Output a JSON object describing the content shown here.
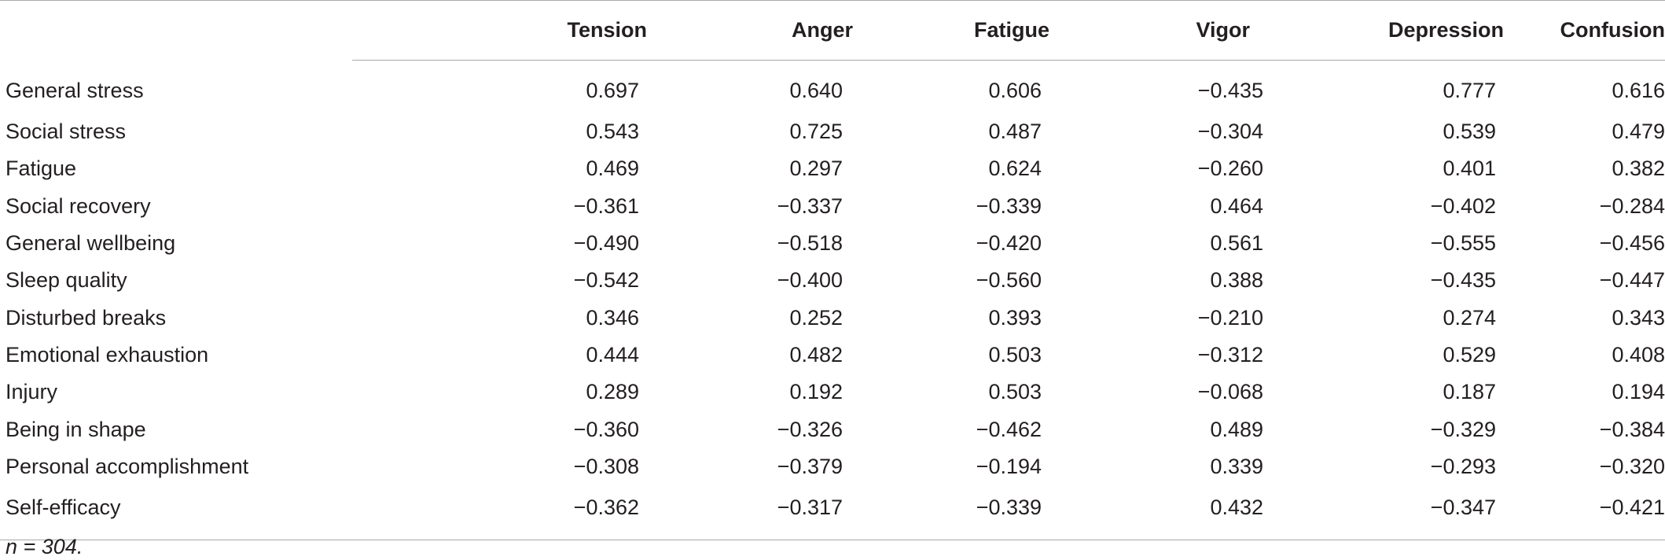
{
  "table": {
    "columns": [
      "Tension",
      "Anger",
      "Fatigue",
      "Vigor",
      "Depression",
      "Confusion"
    ],
    "rows": [
      {
        "label": "General stress",
        "values": [
          "0.697",
          "0.640",
          "0.606",
          "−0.435",
          "0.777",
          "0.616"
        ]
      },
      {
        "label": "Social stress",
        "values": [
          "0.543",
          "0.725",
          "0.487",
          "−0.304",
          "0.539",
          "0.479"
        ]
      },
      {
        "label": "Fatigue",
        "values": [
          "0.469",
          "0.297",
          "0.624",
          "−0.260",
          "0.401",
          "0.382"
        ]
      },
      {
        "label": "Social recovery",
        "values": [
          "−0.361",
          "−0.337",
          "−0.339",
          "0.464",
          "−0.402",
          "−0.284"
        ]
      },
      {
        "label": "General wellbeing",
        "values": [
          "−0.490",
          "−0.518",
          "−0.420",
          "0.561",
          "−0.555",
          "−0.456"
        ]
      },
      {
        "label": "Sleep quality",
        "values": [
          "−0.542",
          "−0.400",
          "−0.560",
          "0.388",
          "−0.435",
          "−0.447"
        ]
      },
      {
        "label": "Disturbed breaks",
        "values": [
          "0.346",
          "0.252",
          "0.393",
          "−0.210",
          "0.274",
          "0.343"
        ]
      },
      {
        "label": "Emotional exhaustion",
        "values": [
          "0.444",
          "0.482",
          "0.503",
          "−0.312",
          "0.529",
          "0.408"
        ]
      },
      {
        "label": "Injury",
        "values": [
          "0.289",
          "0.192",
          "0.503",
          "−0.068",
          "0.187",
          "0.194"
        ]
      },
      {
        "label": "Being in shape",
        "values": [
          "−0.360",
          "−0.326",
          "−0.462",
          "0.489",
          "−0.329",
          "−0.384"
        ]
      },
      {
        "label": "Personal accomplishment",
        "values": [
          "−0.308",
          "−0.379",
          "−0.194",
          "0.339",
          "−0.293",
          "−0.320"
        ]
      },
      {
        "label": "Self-efficacy",
        "values": [
          "−0.362",
          "−0.317",
          "−0.339",
          "0.432",
          "−0.347",
          "−0.421"
        ]
      }
    ]
  },
  "footnote": "n = 304."
}
